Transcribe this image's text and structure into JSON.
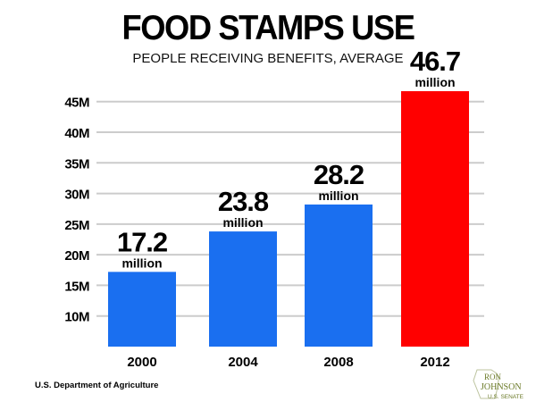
{
  "title": "FOOD STAMPS USE",
  "subtitle": "PEOPLE RECEIVING BENEFITS, AVERAGE",
  "source": "U.S. Department of Agriculture",
  "logo": {
    "line1": "RON",
    "line2": "JOHNSON",
    "line3": "U.S. SENATE"
  },
  "colors": {
    "bar": "#1a6ff0",
    "highlight": "#ff0000",
    "grid": "#cccccc",
    "logo": "#6b7a28"
  },
  "chart_data": {
    "type": "bar",
    "categories": [
      "2000",
      "2004",
      "2008",
      "2012"
    ],
    "values": [
      17.2,
      23.8,
      28.2,
      46.7
    ],
    "value_labels": [
      "17.2",
      "23.8",
      "28.2",
      "46.7"
    ],
    "value_unit": "million",
    "highlight_index": 3,
    "yticks": [
      10,
      15,
      20,
      25,
      30,
      35,
      40,
      45
    ],
    "ytick_labels": [
      "10M",
      "15M",
      "20M",
      "25M",
      "30M",
      "35M",
      "40M",
      "45M"
    ],
    "ylim": [
      5,
      45
    ],
    "grid": true,
    "xlabel": "",
    "ylabel": ""
  }
}
